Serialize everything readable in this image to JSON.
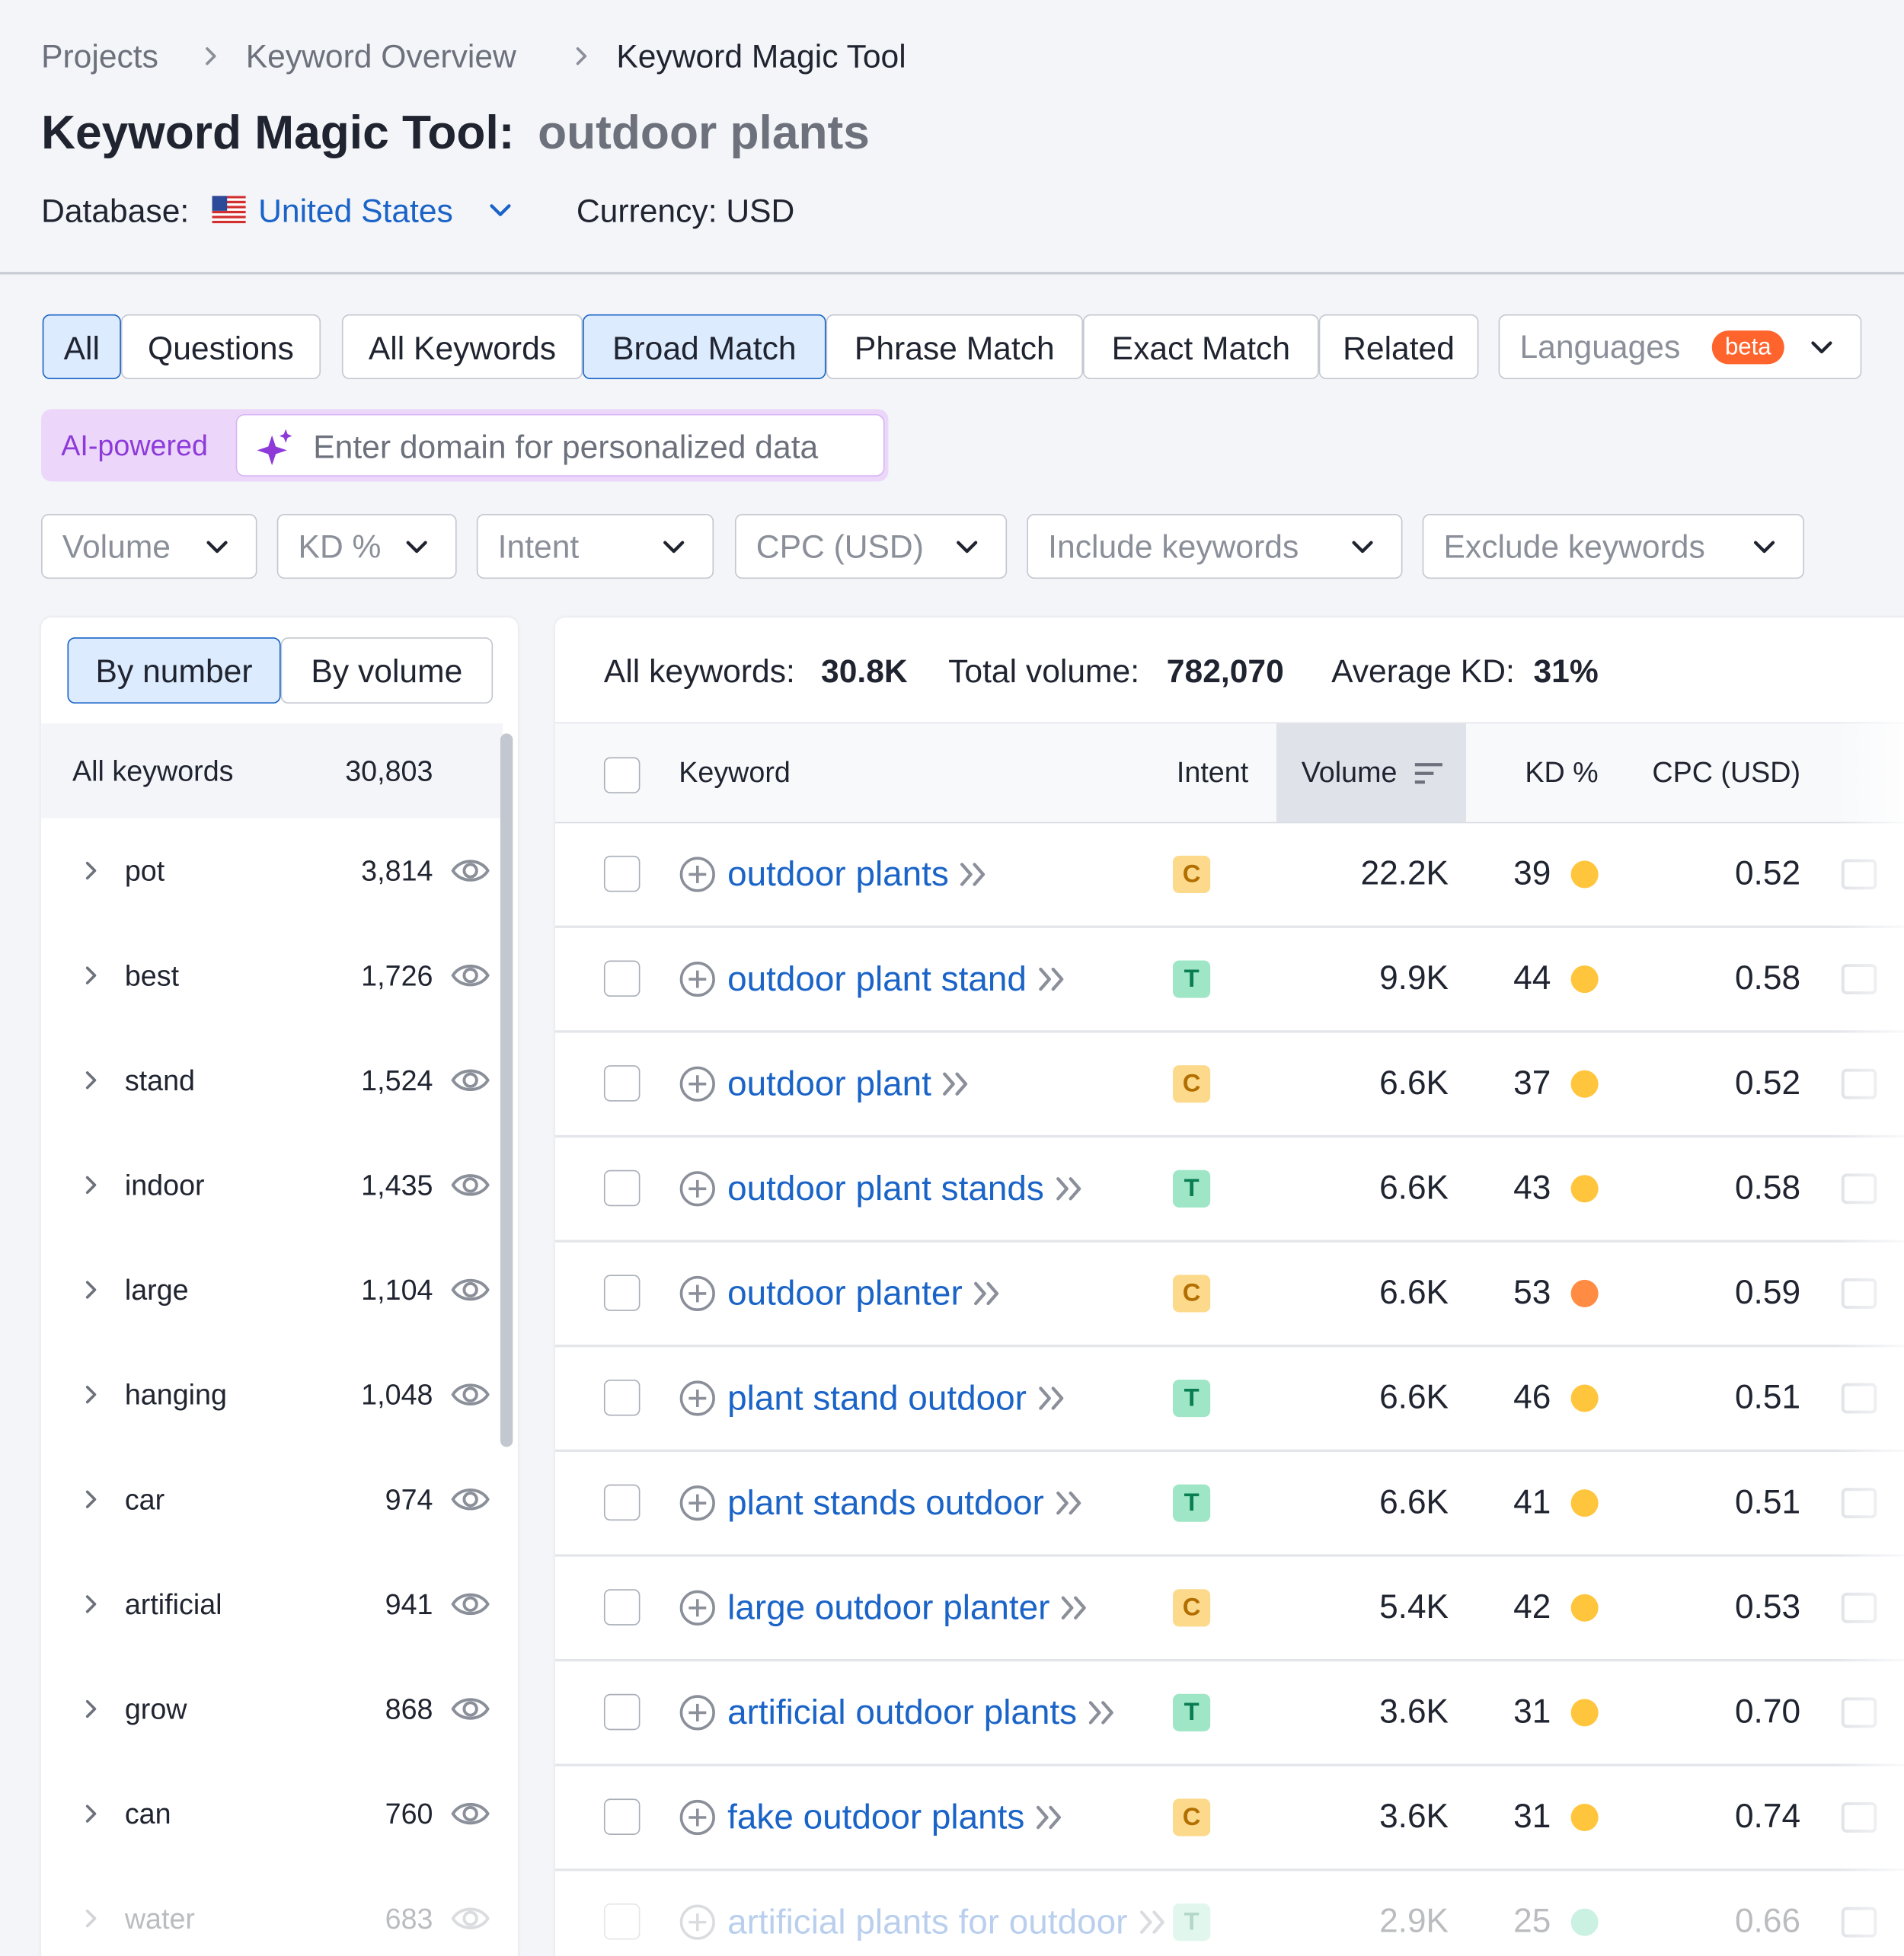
{
  "breadcrumbs": [
    "Projects",
    "Keyword Overview",
    "Keyword Magic Tool"
  ],
  "header": {
    "title": "Keyword Magic Tool:",
    "query": "outdoor plants",
    "database_label": "Database:",
    "database": "United States",
    "currency": "Currency: USD"
  },
  "tabs": {
    "group1": [
      "All",
      "Questions"
    ],
    "group2": [
      "All Keywords",
      "Broad Match",
      "Phrase Match",
      "Exact Match",
      "Related"
    ],
    "languages": "Languages",
    "beta": "beta"
  },
  "ai": {
    "label": "AI-powered",
    "placeholder": "Enter domain for personalized data"
  },
  "filters": [
    "Volume",
    "KD %",
    "Intent",
    "CPC (USD)",
    "Include keywords",
    "Exclude keywords"
  ],
  "sidebar": {
    "toggles": [
      "By number",
      "By volume"
    ],
    "all_label": "All keywords",
    "all_count": "30,803",
    "groups": [
      [
        "pot",
        "3,814"
      ],
      [
        "best",
        "1,726"
      ],
      [
        "stand",
        "1,524"
      ],
      [
        "indoor",
        "1,435"
      ],
      [
        "large",
        "1,104"
      ],
      [
        "hanging",
        "1,048"
      ],
      [
        "car",
        "974"
      ],
      [
        "artificial",
        "941"
      ],
      [
        "grow",
        "868"
      ],
      [
        "can",
        "760"
      ],
      [
        "water",
        "683"
      ]
    ]
  },
  "summary": {
    "all_label": "All keywords:",
    "all_value": "30.8K",
    "volume_label": "Total volume:",
    "volume_value": "782,070",
    "kd_label": "Average KD:",
    "kd_value": "31%"
  },
  "table": {
    "columns": [
      "Keyword",
      "Intent",
      "Volume",
      "KD %",
      "CPC (USD)"
    ],
    "rows": [
      [
        "outdoor plants",
        "C",
        "22.2K",
        39,
        "0.52",
        "#ffc53d"
      ],
      [
        "outdoor plant stand",
        "T",
        "9.9K",
        44,
        "0.58",
        "#ffc53d"
      ],
      [
        "outdoor plant",
        "C",
        "6.6K",
        37,
        "0.52",
        "#ffc53d"
      ],
      [
        "outdoor plant stands",
        "T",
        "6.6K",
        43,
        "0.58",
        "#ffc53d"
      ],
      [
        "outdoor planter",
        "C",
        "6.6K",
        53,
        "0.59",
        "#ff8c42"
      ],
      [
        "plant stand outdoor",
        "T",
        "6.6K",
        46,
        "0.51",
        "#ffc53d"
      ],
      [
        "plant stands outdoor",
        "T",
        "6.6K",
        41,
        "0.51",
        "#ffc53d"
      ],
      [
        "large outdoor planter",
        "C",
        "5.4K",
        42,
        "0.53",
        "#ffc53d"
      ],
      [
        "artificial outdoor plants",
        "T",
        "3.6K",
        31,
        "0.70",
        "#ffc53d"
      ],
      [
        "fake outdoor plants",
        "C",
        "3.6K",
        31,
        "0.74",
        "#ffc53d"
      ],
      [
        "artificial plants for outdoor",
        "T",
        "2.9K",
        25,
        "0.66",
        "#4fd1a0"
      ]
    ]
  }
}
